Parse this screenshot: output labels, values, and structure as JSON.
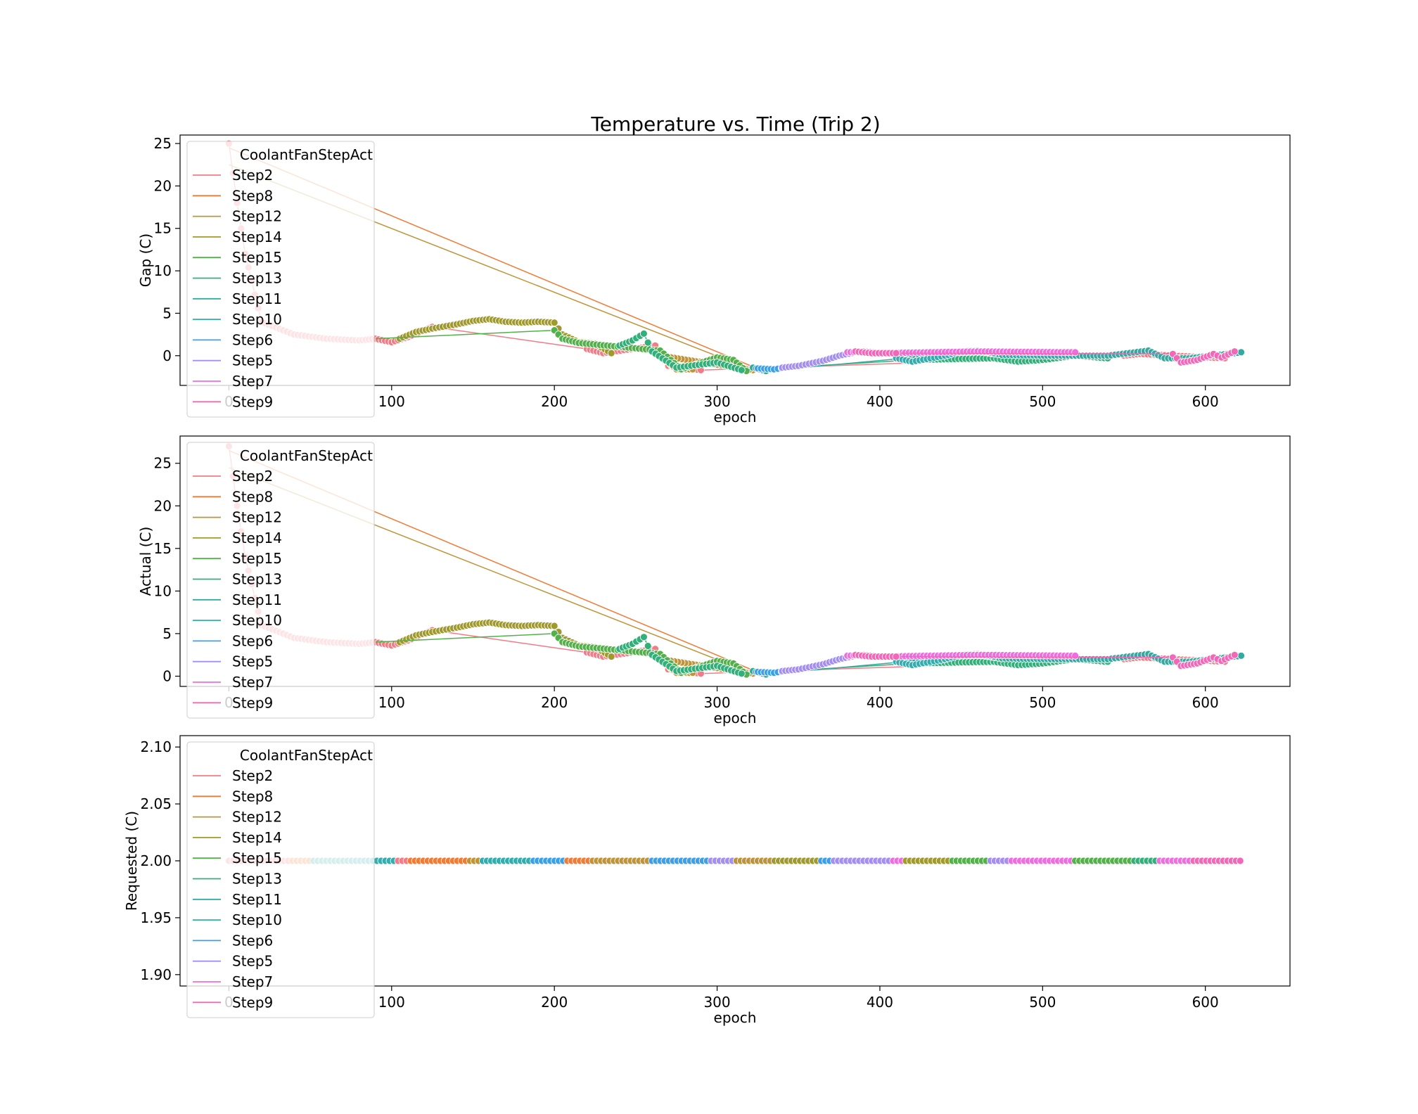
{
  "figure": {
    "title": "Temperature vs. Time (Trip 2)"
  },
  "legend": {
    "title": "CoolantFanStepAct",
    "entries": [
      "Step2",
      "Step8",
      "Step12",
      "Step14",
      "Step15",
      "Step13",
      "Step11",
      "Step10",
      "Step6",
      "Step5",
      "Step7",
      "Step9"
    ],
    "colors": {
      "Step2": "#f37b85",
      "Step8": "#ef7b36",
      "Step12": "#bf9438",
      "Step14": "#a09a2e",
      "Step15": "#54b04a",
      "Step13": "#32b07a",
      "Step11": "#35a8a0",
      "Step10": "#35acad",
      "Step6": "#3ca0e8",
      "Step5": "#a48ef0",
      "Step7": "#ee6ee0",
      "Step9": "#f467b8"
    }
  },
  "chart_data": [
    {
      "type": "scatter",
      "xlabel": "epoch",
      "ylabel": "Gap (C)",
      "xlim": [
        -30,
        652
      ],
      "ylim": [
        -3.5,
        26.0
      ],
      "xticks": [
        "0",
        "100",
        "200",
        "300",
        "400",
        "500",
        "600"
      ],
      "yticks": [
        "0",
        "5",
        "10",
        "15",
        "20",
        "25"
      ],
      "legend_position": "upper left",
      "grid": false,
      "series": [
        {
          "name": "Step2",
          "points": [
            [
              0,
              25
            ],
            [
              5,
              18
            ],
            [
              10,
              12
            ],
            [
              20,
              4
            ],
            [
              40,
              2.5
            ],
            [
              60,
              2
            ],
            [
              80,
              1.8
            ],
            [
              90,
              2
            ],
            [
              100,
              1.6
            ],
            [
              110,
              2.2
            ],
            [
              125,
              3.4
            ],
            [
              220,
              0.8
            ],
            [
              230,
              0.3
            ],
            [
              262,
              1.2
            ],
            [
              270,
              -1.2
            ],
            [
              290,
              -1.7
            ],
            [
              550,
              0
            ],
            [
              560,
              0.2
            ],
            [
              612,
              -0.3
            ]
          ]
        },
        {
          "name": "Step8",
          "points": [
            [
              0,
              24.5
            ],
            [
              322,
              -1.3
            ]
          ]
        },
        {
          "name": "Step12",
          "points": [
            [
              0,
              22.5
            ],
            [
              322,
              -1.7
            ],
            [
              265,
              0
            ],
            [
              275,
              -1.6
            ],
            [
              285,
              -1.6
            ]
          ]
        },
        {
          "name": "Step14",
          "points": [
            [
              105,
              2
            ],
            [
              115,
              2.8
            ],
            [
              125,
              3.2
            ],
            [
              140,
              3.7
            ],
            [
              150,
              4.1
            ],
            [
              160,
              4.3
            ],
            [
              170,
              4.0
            ],
            [
              180,
              3.9
            ],
            [
              190,
              4.0
            ],
            [
              200,
              3.9
            ],
            [
              205,
              2.5
            ],
            [
              215,
              1.6
            ],
            [
              225,
              1.4
            ],
            [
              235,
              0.3
            ]
          ]
        },
        {
          "name": "Step15",
          "points": [
            [
              90,
              2
            ],
            [
              200,
              3
            ],
            [
              205,
              2
            ],
            [
              215,
              1.5
            ],
            [
              265,
              0.6
            ],
            [
              278,
              -1.6
            ],
            [
              300,
              -0.2
            ],
            [
              310,
              -0.5
            ],
            [
              318,
              -1.8
            ]
          ]
        },
        {
          "name": "Step13",
          "points": [
            [
              240,
              1.2
            ],
            [
              248,
              1.8
            ],
            [
              255,
              2.6
            ],
            [
              260,
              0.5
            ],
            [
              275,
              -1.4
            ],
            [
              300,
              -0.8
            ],
            [
              315,
              -1.7
            ],
            [
              420,
              -0.5
            ],
            [
              470,
              -0.3
            ],
            [
              485,
              -0.7
            ],
            [
              500,
              -0.5
            ],
            [
              520,
              0
            ],
            [
              540,
              -0.3
            ]
          ]
        },
        {
          "name": "Step11",
          "points": [
            [
              322,
              -1.4
            ],
            [
              330,
              -1.8
            ],
            [
              415,
              -0.3
            ],
            [
              440,
              0.3
            ],
            [
              455,
              0.6
            ],
            [
              465,
              0.4
            ],
            [
              475,
              0.1
            ],
            [
              505,
              0
            ],
            [
              540,
              0
            ],
            [
              565,
              0.6
            ],
            [
              575,
              -0.3
            ],
            [
              590,
              -0.3
            ],
            [
              622,
              0.4
            ]
          ]
        },
        {
          "name": "Step10",
          "points": [
            [
              410,
              -0.3
            ],
            [
              420,
              -0.7
            ],
            [
              440,
              0
            ],
            [
              450,
              0.5
            ],
            [
              460,
              0.6
            ],
            [
              470,
              0.3
            ]
          ]
        },
        {
          "name": "Step6",
          "points": [
            [
              325,
              -1.5
            ],
            [
              335,
              -1.6
            ],
            [
              342,
              -1.4
            ]
          ]
        },
        {
          "name": "Step5",
          "points": [
            [
              340,
              -1.4
            ],
            [
              350,
              -1.2
            ],
            [
              365,
              -0.6
            ],
            [
              375,
              0
            ],
            [
              385,
              0.4
            ]
          ]
        },
        {
          "name": "Step7",
          "points": [
            [
              380,
              0.4
            ],
            [
              390,
              0.5
            ],
            [
              400,
              0.3
            ],
            [
              460,
              0.5
            ],
            [
              520,
              0.4
            ]
          ]
        },
        {
          "name": "Step9",
          "points": [
            [
              385,
              0.5
            ],
            [
              395,
              0.3
            ],
            [
              410,
              0.3
            ],
            [
              580,
              0.2
            ],
            [
              585,
              -0.8
            ],
            [
              595,
              -0.5
            ],
            [
              605,
              0.2
            ],
            [
              610,
              -0.2
            ],
            [
              618,
              0.5
            ]
          ]
        }
      ]
    },
    {
      "type": "scatter",
      "xlabel": "epoch",
      "ylabel": "Actual (C)",
      "xlim": [
        -30,
        652
      ],
      "ylim": [
        -1.2,
        28.2
      ],
      "xticks": [
        "0",
        "100",
        "200",
        "300",
        "400",
        "500",
        "600"
      ],
      "yticks": [
        "0",
        "5",
        "10",
        "15",
        "20",
        "25"
      ],
      "legend_position": "upper left",
      "grid": false,
      "series": [
        {
          "name": "Step2",
          "points": [
            [
              0,
              27
            ],
            [
              5,
              20
            ],
            [
              10,
              14
            ],
            [
              20,
              6
            ],
            [
              40,
              4.5
            ],
            [
              60,
              4
            ],
            [
              80,
              3.8
            ],
            [
              90,
              4
            ],
            [
              100,
              3.6
            ],
            [
              110,
              4.2
            ],
            [
              125,
              5.4
            ],
            [
              220,
              2.8
            ],
            [
              230,
              2.3
            ],
            [
              262,
              3.2
            ],
            [
              270,
              0.8
            ],
            [
              290,
              0.3
            ],
            [
              550,
              2
            ],
            [
              560,
              2.2
            ],
            [
              612,
              1.7
            ]
          ]
        },
        {
          "name": "Step8",
          "points": [
            [
              0,
              26.5
            ],
            [
              322,
              0.7
            ]
          ]
        },
        {
          "name": "Step12",
          "points": [
            [
              0,
              24.5
            ],
            [
              322,
              0.3
            ],
            [
              265,
              2
            ],
            [
              275,
              0.4
            ],
            [
              285,
              0.4
            ]
          ]
        },
        {
          "name": "Step14",
          "points": [
            [
              105,
              4
            ],
            [
              115,
              4.8
            ],
            [
              125,
              5.2
            ],
            [
              140,
              5.7
            ],
            [
              150,
              6.1
            ],
            [
              160,
              6.3
            ],
            [
              170,
              6.0
            ],
            [
              180,
              5.9
            ],
            [
              190,
              6.0
            ],
            [
              200,
              5.9
            ],
            [
              205,
              4.5
            ],
            [
              215,
              3.6
            ],
            [
              225,
              3.4
            ],
            [
              235,
              2.3
            ]
          ]
        },
        {
          "name": "Step15",
          "points": [
            [
              90,
              4
            ],
            [
              200,
              5
            ],
            [
              205,
              4
            ],
            [
              215,
              3.5
            ],
            [
              265,
              2.6
            ],
            [
              278,
              0.4
            ],
            [
              300,
              1.8
            ],
            [
              310,
              1.5
            ],
            [
              318,
              0.2
            ]
          ]
        },
        {
          "name": "Step13",
          "points": [
            [
              240,
              3.2
            ],
            [
              248,
              3.8
            ],
            [
              255,
              4.6
            ],
            [
              260,
              2.5
            ],
            [
              275,
              0.6
            ],
            [
              300,
              1.2
            ],
            [
              315,
              0.3
            ],
            [
              420,
              1.5
            ],
            [
              470,
              1.7
            ],
            [
              485,
              1.3
            ],
            [
              500,
              1.5
            ],
            [
              520,
              2
            ],
            [
              540,
              1.7
            ]
          ]
        },
        {
          "name": "Step11",
          "points": [
            [
              322,
              0.6
            ],
            [
              330,
              0.2
            ],
            [
              415,
              1.7
            ],
            [
              440,
              2.3
            ],
            [
              455,
              2.6
            ],
            [
              465,
              2.4
            ],
            [
              475,
              2.1
            ],
            [
              505,
              2
            ],
            [
              540,
              2
            ],
            [
              565,
              2.6
            ],
            [
              575,
              1.7
            ],
            [
              590,
              1.7
            ],
            [
              622,
              2.4
            ]
          ]
        },
        {
          "name": "Step10",
          "points": [
            [
              410,
              1.7
            ],
            [
              420,
              1.3
            ],
            [
              440,
              2
            ],
            [
              450,
              2.5
            ],
            [
              460,
              2.6
            ],
            [
              470,
              2.3
            ]
          ]
        },
        {
          "name": "Step6",
          "points": [
            [
              325,
              0.5
            ],
            [
              335,
              0.4
            ],
            [
              342,
              0.6
            ]
          ]
        },
        {
          "name": "Step5",
          "points": [
            [
              340,
              0.6
            ],
            [
              350,
              0.8
            ],
            [
              365,
              1.4
            ],
            [
              375,
              2
            ],
            [
              385,
              2.4
            ]
          ]
        },
        {
          "name": "Step7",
          "points": [
            [
              380,
              2.4
            ],
            [
              390,
              2.5
            ],
            [
              400,
              2.3
            ],
            [
              460,
              2.5
            ],
            [
              520,
              2.4
            ]
          ]
        },
        {
          "name": "Step9",
          "points": [
            [
              385,
              2.5
            ],
            [
              395,
              2.3
            ],
            [
              410,
              2.3
            ],
            [
              580,
              2.2
            ],
            [
              585,
              1.2
            ],
            [
              595,
              1.5
            ],
            [
              605,
              2.2
            ],
            [
              610,
              1.8
            ],
            [
              618,
              2.5
            ]
          ]
        }
      ]
    },
    {
      "type": "scatter",
      "xlabel": "epoch",
      "ylabel": "Requested (C)",
      "xlim": [
        -30,
        652
      ],
      "ylim": [
        1.89,
        2.11
      ],
      "xticks": [
        "0",
        "100",
        "200",
        "300",
        "400",
        "500",
        "600"
      ],
      "yticks": [
        "1.90",
        "1.95",
        "2.00",
        "2.05",
        "2.10"
      ],
      "legend_position": "upper left",
      "grid": false,
      "constant_value": 2.0,
      "x_span": [
        0,
        622
      ]
    }
  ]
}
